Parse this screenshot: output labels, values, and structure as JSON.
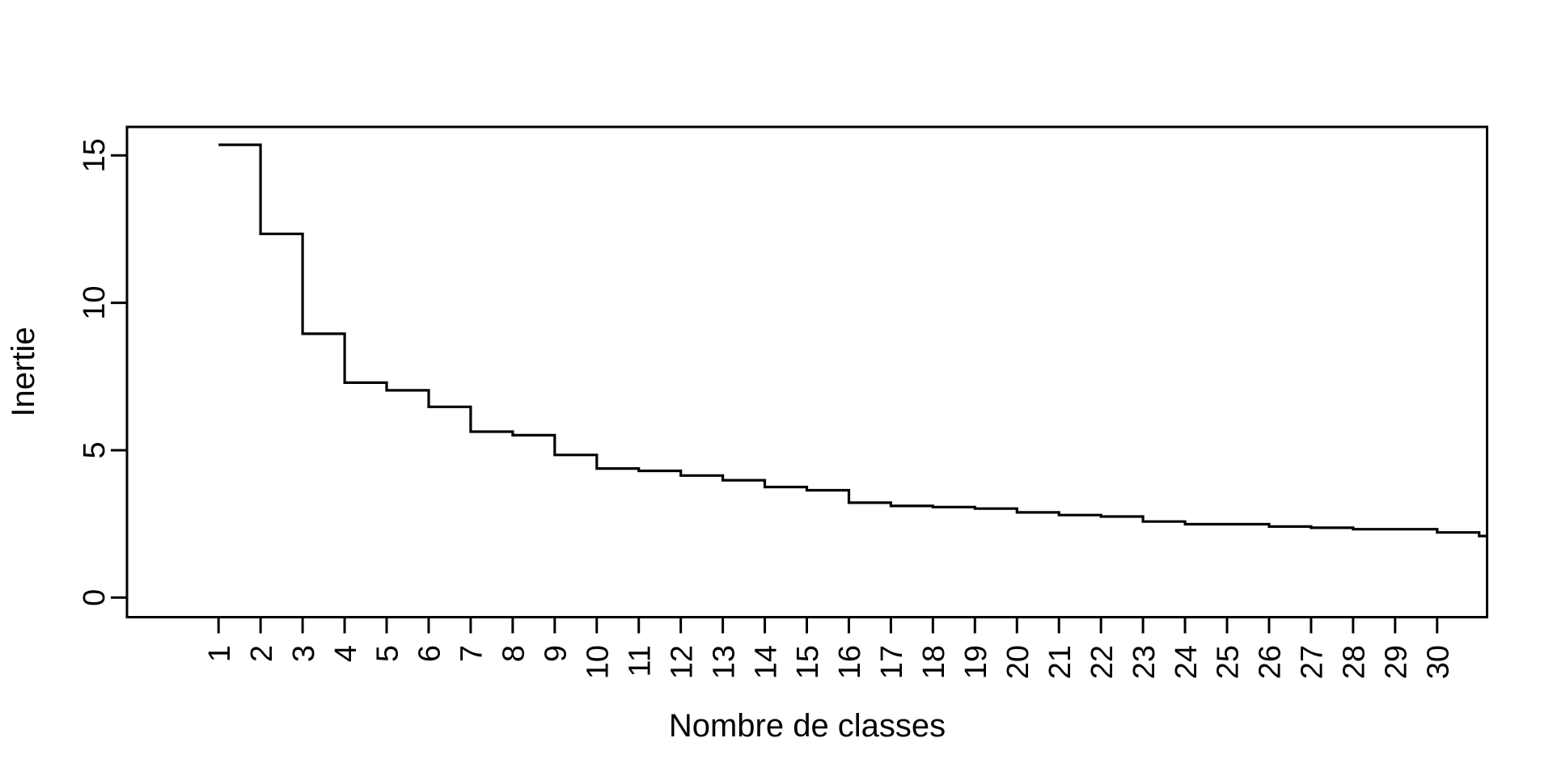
{
  "chart_data": {
    "type": "line",
    "line_style": "step",
    "title": "",
    "xlabel": "Nombre de classes",
    "ylabel": "Inertie",
    "x": [
      1,
      2,
      3,
      4,
      5,
      6,
      7,
      8,
      9,
      10,
      11,
      12,
      13,
      14,
      15,
      16,
      17,
      18,
      19,
      20,
      21,
      22,
      23,
      24,
      25,
      26,
      27,
      28,
      29,
      30,
      31
    ],
    "values": [
      15.36,
      12.34,
      8.95,
      7.29,
      7.03,
      6.47,
      5.63,
      5.51,
      4.84,
      4.38,
      4.3,
      4.14,
      3.98,
      3.75,
      3.64,
      3.22,
      3.11,
      3.07,
      3.02,
      2.89,
      2.8,
      2.75,
      2.58,
      2.49,
      2.49,
      2.41,
      2.37,
      2.32,
      2.32,
      2.21,
      2.09
    ],
    "x_tick_labels": [
      "1",
      "2",
      "3",
      "4",
      "5",
      "6",
      "7",
      "8",
      "9",
      "10",
      "11",
      "12",
      "13",
      "14",
      "15",
      "16",
      "17",
      "18",
      "19",
      "20",
      "21",
      "22",
      "23",
      "24",
      "25",
      "26",
      "27",
      "28",
      "29",
      "30"
    ],
    "y_ticks": [
      {
        "label": "0",
        "value": 0
      },
      {
        "label": "5",
        "value": 5
      },
      {
        "label": "10",
        "value": 10
      },
      {
        "label": "15",
        "value": 15
      }
    ],
    "xlim": [
      -1.18,
      31.19
    ],
    "ylim": [
      -0.66,
      15.97
    ],
    "grid": false,
    "legend": "none",
    "line_color": "#000000",
    "background_color": "#ffffff"
  }
}
